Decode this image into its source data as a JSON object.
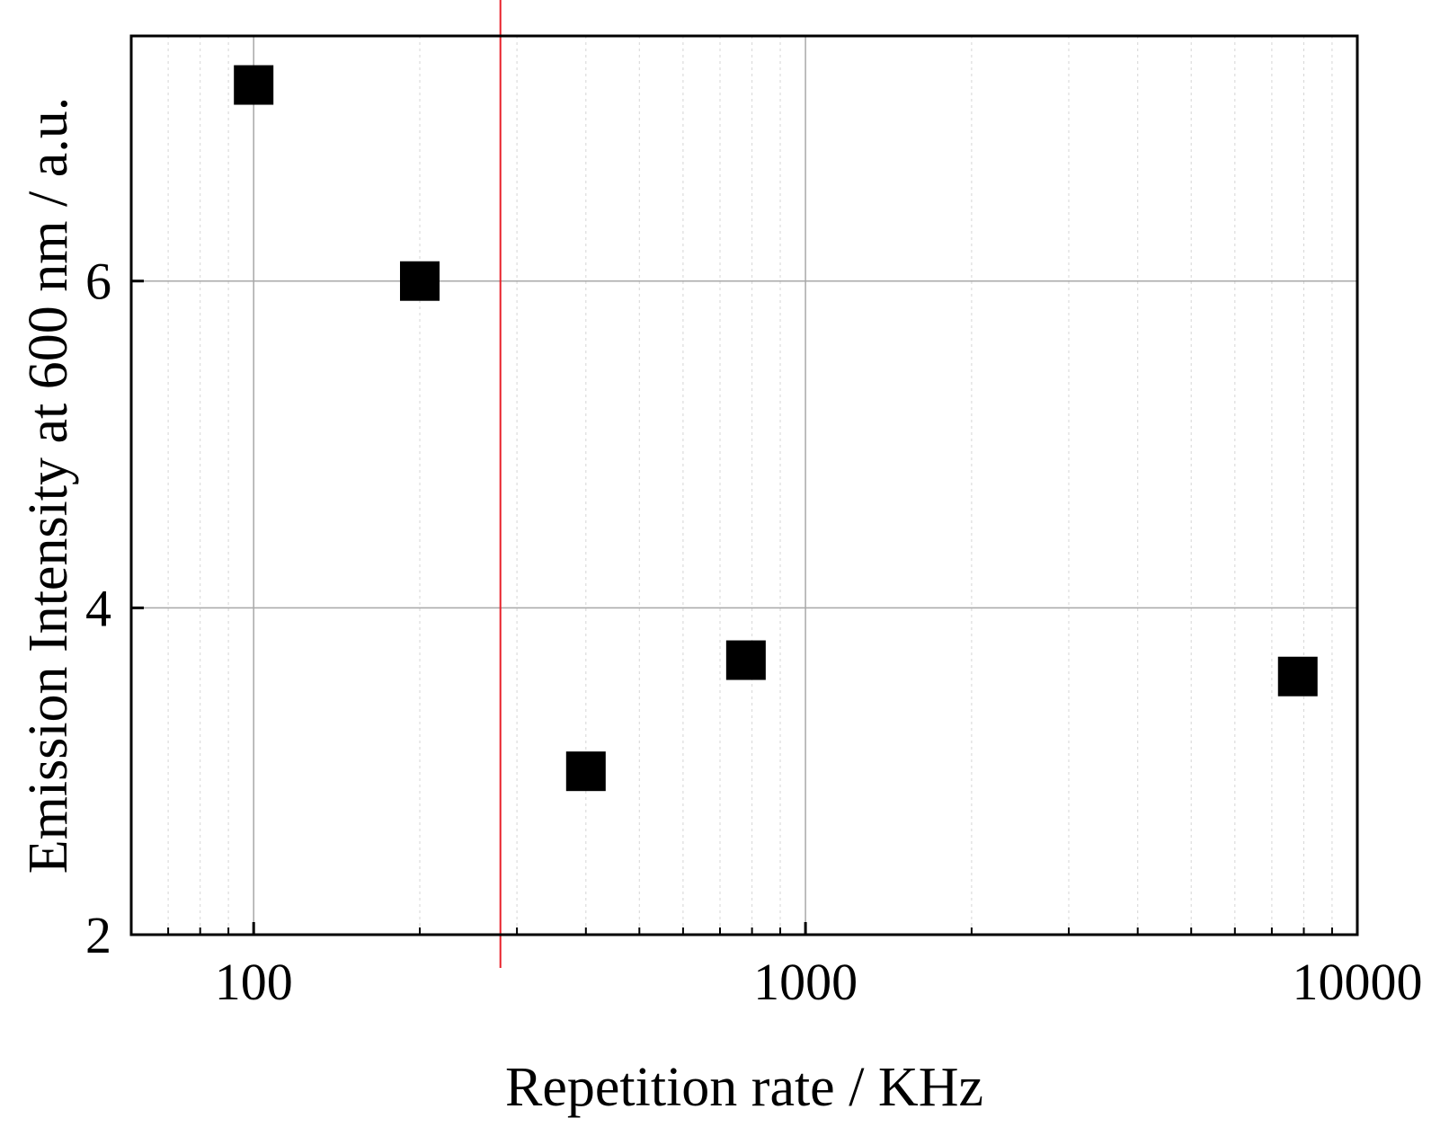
{
  "chart_data": {
    "type": "scatter",
    "title": "",
    "xlabel": "Repetition rate / KHz",
    "ylabel": "Emission Intensity at 600 nm / a.u.",
    "xscale": "log",
    "xlim": [
      60,
      10000
    ],
    "ylim": [
      2,
      7.5
    ],
    "x_ticks": [
      100,
      1000,
      10000
    ],
    "x_tick_labels": [
      "100",
      "1000",
      "10000"
    ],
    "y_ticks": [
      2,
      4,
      6
    ],
    "y_tick_labels": [
      "2",
      "4",
      "6"
    ],
    "grid": true,
    "marker": "square",
    "reference_line": {
      "x": 280,
      "color": "#e8202a"
    },
    "series": [
      {
        "name": "Emission Intensity",
        "color": "#000000",
        "x": [
          100,
          200,
          400,
          780,
          7800
        ],
        "y": [
          7.2,
          6.0,
          3.0,
          3.68,
          3.58
        ]
      }
    ]
  }
}
